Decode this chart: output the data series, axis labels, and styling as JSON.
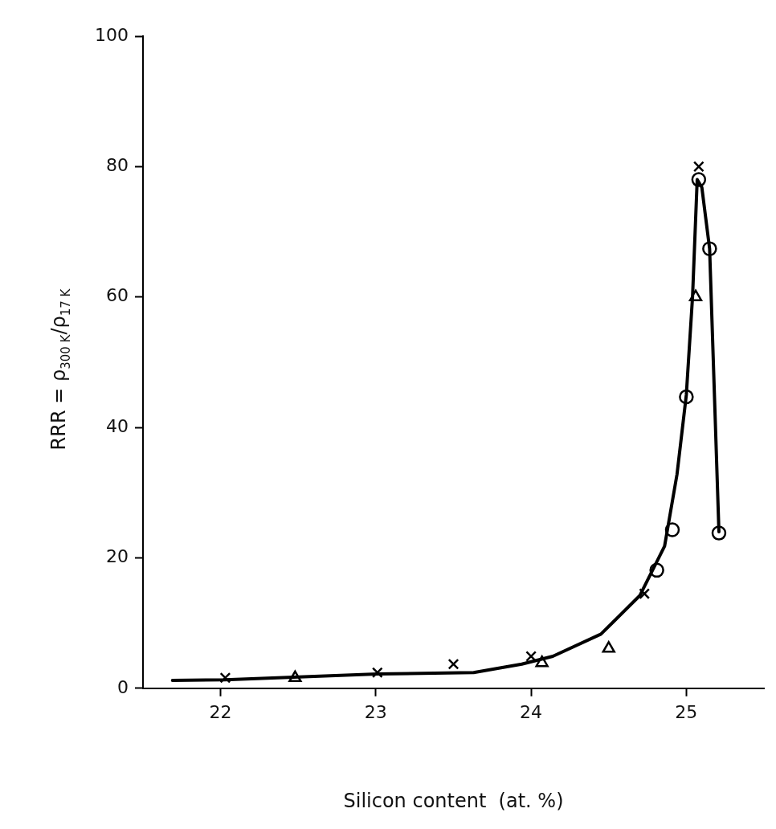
{
  "chart_data": {
    "type": "scatter",
    "xlabel": "Silicon content  (at. %)",
    "ylabel": "RRR = ρ$_{300 K}$/ρ$_{17 K}$",
    "xlim": [
      21.5,
      25.5
    ],
    "xticks": [
      22,
      23,
      24,
      25
    ],
    "ylim": [
      0,
      100
    ],
    "yticks": [
      0,
      20,
      40,
      60,
      80,
      100
    ],
    "grid": false,
    "legend": false,
    "series": [
      {
        "type": "line",
        "marker": "none",
        "line_style": "solid",
        "color": "#000000",
        "x": [
          21.69,
          22.03,
          23.01,
          23.63,
          23.94,
          24.14,
          24.45,
          24.7,
          24.86,
          24.94,
          25.0,
          25.04,
          25.07,
          25.1,
          25.15,
          25.21
        ],
        "values": [
          1.2,
          1.3,
          2.2,
          2.4,
          3.7,
          4.9,
          8.3,
          14.2,
          21.8,
          32.8,
          45,
          60,
          78,
          76.8,
          67.4,
          24
        ]
      },
      {
        "marker": "cross",
        "color": "#000000",
        "x": [
          22.03,
          23.01,
          23.5,
          24.0,
          24.73,
          25.08
        ],
        "values": [
          1.6,
          2.4,
          3.7,
          4.9,
          14.5,
          80
        ]
      },
      {
        "marker": "triangle",
        "color": "#000000",
        "x": [
          22.48,
          24.07,
          24.5,
          25.06
        ],
        "values": [
          1.6,
          3.9,
          6.1,
          60
        ]
      },
      {
        "marker": "circle",
        "color": "#000000",
        "x": [
          25.08,
          25.15,
          25.0,
          24.91,
          24.81,
          25.21
        ],
        "values": [
          78,
          67.4,
          44.7,
          24.3,
          18.1,
          23.8
        ]
      }
    ]
  }
}
